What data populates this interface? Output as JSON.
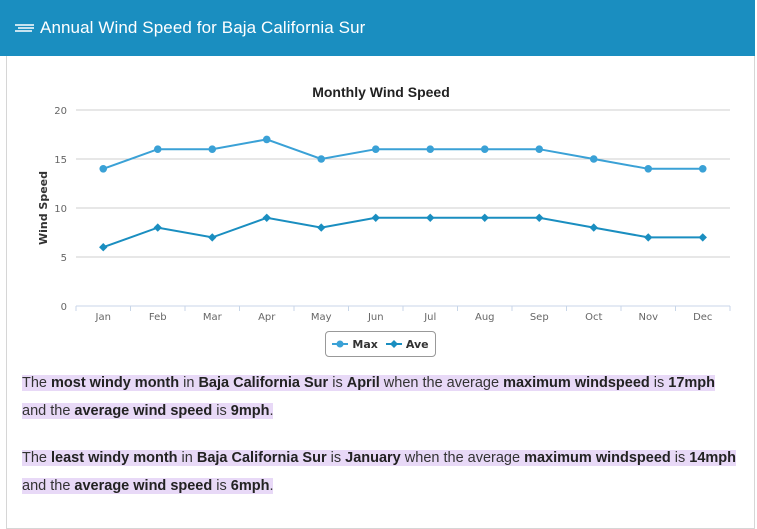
{
  "header": {
    "title": "Annual Wind Speed for Baja California Sur",
    "icon": "wind-icon",
    "bg_color": "#1a8ec0"
  },
  "chart_data": {
    "type": "line",
    "title": "Monthly Wind Speed",
    "ylabel": "Wind Speed",
    "xlabel": "",
    "categories": [
      "Jan",
      "Feb",
      "Mar",
      "Apr",
      "May",
      "Jun",
      "Jul",
      "Aug",
      "Sep",
      "Oct",
      "Nov",
      "Dec"
    ],
    "ylim": [
      0,
      20
    ],
    "yticks": [
      0,
      5,
      10,
      15,
      20
    ],
    "grid": true,
    "legend": "bottom-center",
    "series": [
      {
        "name": "Max",
        "values": [
          14,
          16,
          16,
          17,
          15,
          16,
          16,
          16,
          16,
          15,
          14,
          14
        ],
        "color": "#3aa1d6",
        "marker": "circle"
      },
      {
        "name": "Ave",
        "values": [
          6,
          8,
          7,
          9,
          8,
          9,
          9,
          9,
          9,
          8,
          7,
          7
        ],
        "color": "#1a8ec0",
        "marker": "diamond"
      }
    ]
  },
  "summary": {
    "p1": [
      "The ",
      "most windy month",
      " in ",
      "Baja California Sur",
      " is ",
      "April",
      " when the average ",
      "maximum windspeed",
      " is ",
      "17mph",
      " and the ",
      "average wind speed",
      " is ",
      "9mph",
      "."
    ],
    "p2": [
      "The ",
      "least windy month",
      " in ",
      "Baja California Sur",
      " is ",
      "January",
      " when the average ",
      "maximum windspeed",
      " is ",
      "14mph",
      " and the ",
      "average wind speed",
      " is ",
      "6mph",
      "."
    ]
  }
}
